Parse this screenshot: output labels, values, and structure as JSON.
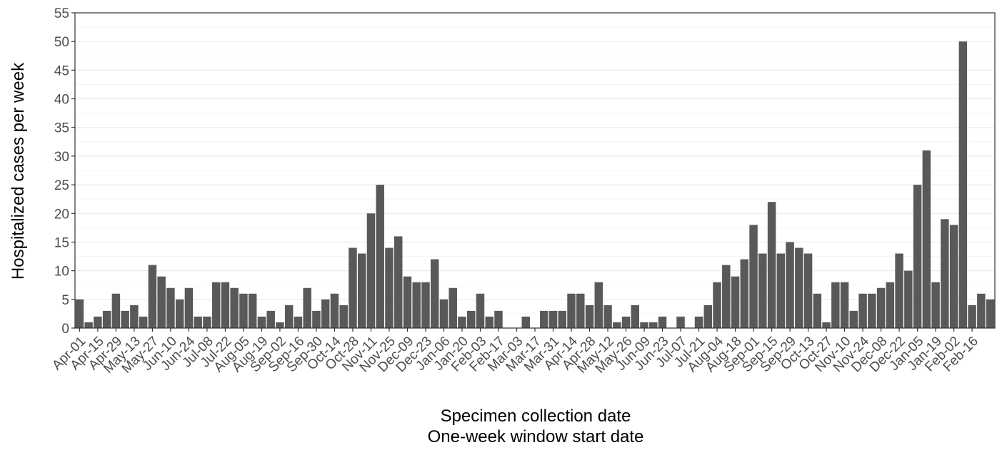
{
  "chart_data": {
    "type": "bar",
    "title": "",
    "xlabel": [
      "Specimen collection date",
      "One-week window start date"
    ],
    "ylabel": "Hospitalized cases per week",
    "ylim": [
      0,
      55
    ],
    "yticks": [
      0,
      5,
      10,
      15,
      20,
      25,
      30,
      35,
      40,
      45,
      50,
      55
    ],
    "grid": true,
    "bar_color": "#595959",
    "grid_color": "#ebebeb",
    "x_tick_labels": [
      "Apr-01",
      "Apr-15",
      "Apr-29",
      "May-13",
      "May-27",
      "Jun-10",
      "Jun-24",
      "Jul-08",
      "Jul-22",
      "Aug-05",
      "Aug-19",
      "Sep-02",
      "Sep-16",
      "Sep-30",
      "Oct-14",
      "Oct-28",
      "Nov-11",
      "Nov-25",
      "Dec-09",
      "Dec-23",
      "Jan-06",
      "Jan-20",
      "Feb-03",
      "Feb-17",
      "Mar-03",
      "Mar-17",
      "Mar-31",
      "Apr-14",
      "Apr-28",
      "May-12",
      "May-26",
      "Jun-09",
      "Jun-23",
      "Jul-07",
      "Jul-21",
      "Aug-04",
      "Aug-18",
      "Sep-01",
      "Sep-15",
      "Sep-29",
      "Oct-13",
      "Oct-27",
      "Nov-10",
      "Nov-24",
      "Dec-08",
      "Dec-22",
      "Jan-05",
      "Jan-19",
      "Feb-02",
      "Feb-16"
    ],
    "values": [
      5,
      1,
      2,
      3,
      6,
      3,
      4,
      2,
      11,
      9,
      7,
      5,
      7,
      2,
      2,
      8,
      8,
      7,
      6,
      6,
      2,
      3,
      1,
      4,
      2,
      7,
      3,
      5,
      6,
      4,
      14,
      13,
      20,
      25,
      14,
      16,
      9,
      8,
      8,
      12,
      5,
      7,
      2,
      3,
      6,
      2,
      3,
      0,
      0,
      2,
      0,
      3,
      3,
      3,
      6,
      6,
      4,
      8,
      4,
      1,
      2,
      4,
      1,
      1,
      2,
      0,
      2,
      0,
      2,
      4,
      8,
      11,
      9,
      12,
      18,
      13,
      22,
      13,
      15,
      14,
      13,
      6,
      1,
      8,
      8,
      3,
      6,
      6,
      7,
      8,
      13,
      10,
      25,
      31,
      8,
      19,
      18,
      50,
      4,
      6,
      5
    ]
  }
}
